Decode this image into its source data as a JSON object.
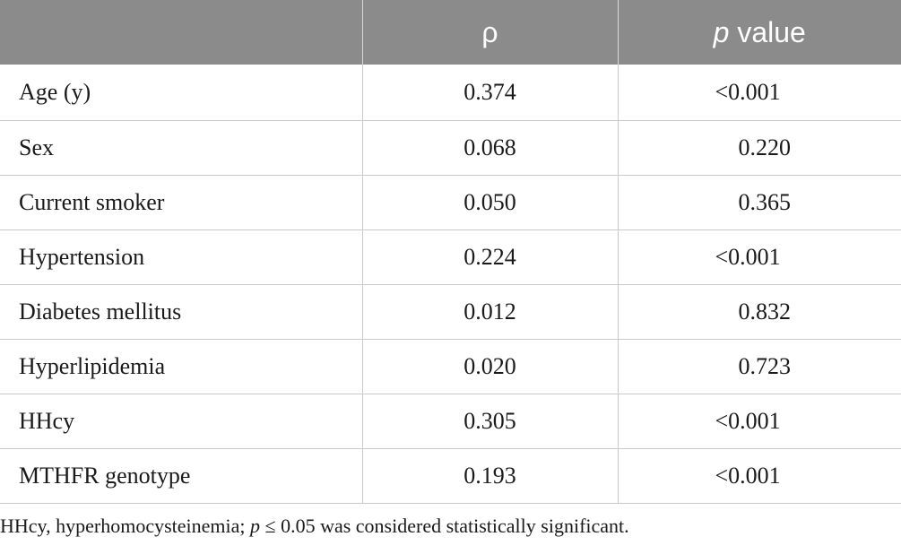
{
  "table": {
    "headers": {
      "variable": "",
      "rho": "ρ",
      "p_italic": "p",
      "p_rest": " value"
    },
    "rows": [
      {
        "variable": "Age (y)",
        "rho": "0.374",
        "p": "<0.001"
      },
      {
        "variable": "Sex",
        "rho": "0.068",
        "p": "  0.220"
      },
      {
        "variable": "Current smoker",
        "rho": "0.050",
        "p": "  0.365"
      },
      {
        "variable": "Hypertension",
        "rho": "0.224",
        "p": "<0.001"
      },
      {
        "variable": "Diabetes mellitus",
        "rho": "0.012",
        "p": "  0.832"
      },
      {
        "variable": "Hyperlipidemia",
        "rho": "0.020",
        "p": "  0.723"
      },
      {
        "variable": "HHcy",
        "rho": "0.305",
        "p": "<0.001"
      },
      {
        "variable": "MTHFR genotype",
        "rho": "0.193",
        "p": "<0.001"
      }
    ]
  },
  "footnote": {
    "part1": "HHcy, hyperhomocysteinemia; ",
    "p_italic": "p",
    "part2": " ≤ 0.05 was considered statistically significant."
  }
}
